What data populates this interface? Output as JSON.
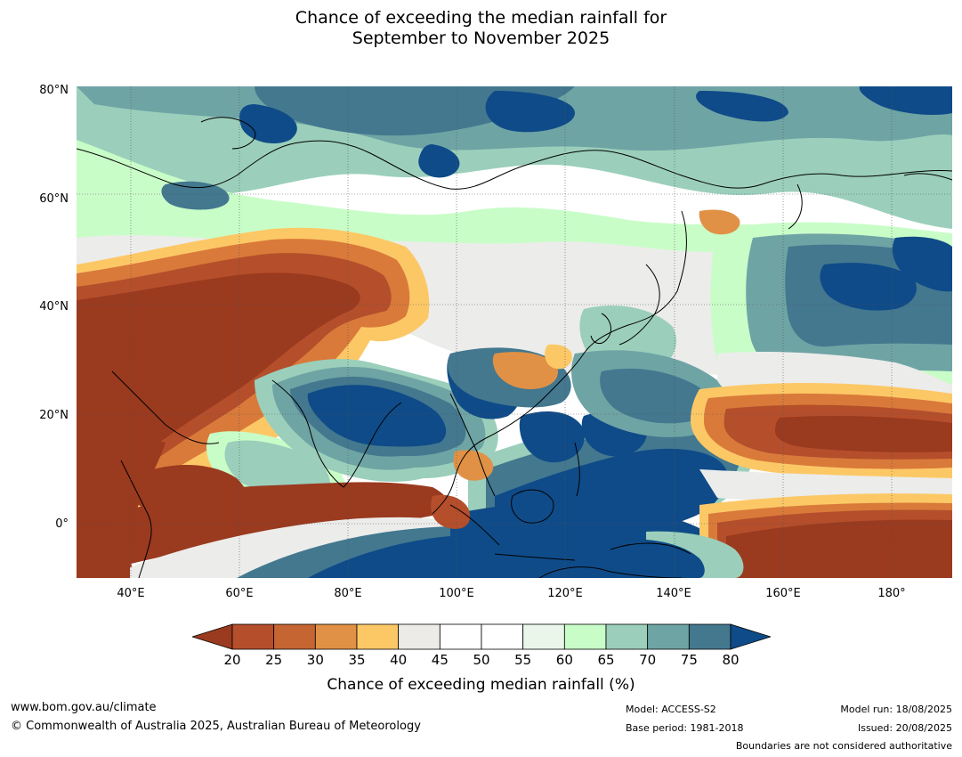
{
  "title": {
    "line1": "Chance of exceeding the median rainfall for",
    "line2": "September to November 2025"
  },
  "map": {
    "lat_labels": [
      "80°N",
      "60°N",
      "40°N",
      "20°N",
      "0°"
    ],
    "lon_labels": [
      "40°E",
      "60°E",
      "80°E",
      "100°E",
      "120°E",
      "140°E",
      "160°E",
      "180°"
    ],
    "extent": {
      "lon": [
        30,
        191
      ],
      "lat": [
        -10,
        80
      ]
    },
    "colors": {
      "dry_extreme": "#9a3a1f",
      "dry_strong": "#b54e2b",
      "dry": "#d97a3a",
      "dry_light": "#fcc866",
      "neutral": "#ffffff",
      "neutral_grey": "#ececea",
      "wet_light": "#c9fdc8",
      "wet": "#9bcfbb",
      "wet_mid": "#6fa4a5",
      "wet_strong": "#43788f",
      "wet_extreme": "#0f4b88"
    }
  },
  "colorbar": {
    "ticks": [
      "20",
      "25",
      "30",
      "35",
      "40",
      "45",
      "50",
      "55",
      "60",
      "65",
      "70",
      "75",
      "80"
    ],
    "colors": [
      "#9a3a1f",
      "#b54e2b",
      "#c56532",
      "#e09145",
      "#fcc866",
      "#ecebe7",
      "#ffffff",
      "#ffffff",
      "#eaf6ea",
      "#c9fdc8",
      "#9bcfbb",
      "#6fa4a5",
      "#43788f",
      "#0f4b88"
    ],
    "label": "Chance of exceeding median rainfall (%)"
  },
  "footer": {
    "url": "www.bom.gov.au/climate",
    "copyright": "© Commonwealth of Australia 2025, Australian Bureau of Meteorology",
    "model": "Model: ACCESS-S2",
    "base_period": "Base period: 1981-2018",
    "model_run": "Model run: 18/08/2025",
    "issued": "Issued: 20/08/2025",
    "disclaimer": "Boundaries are not considered authoritative"
  }
}
